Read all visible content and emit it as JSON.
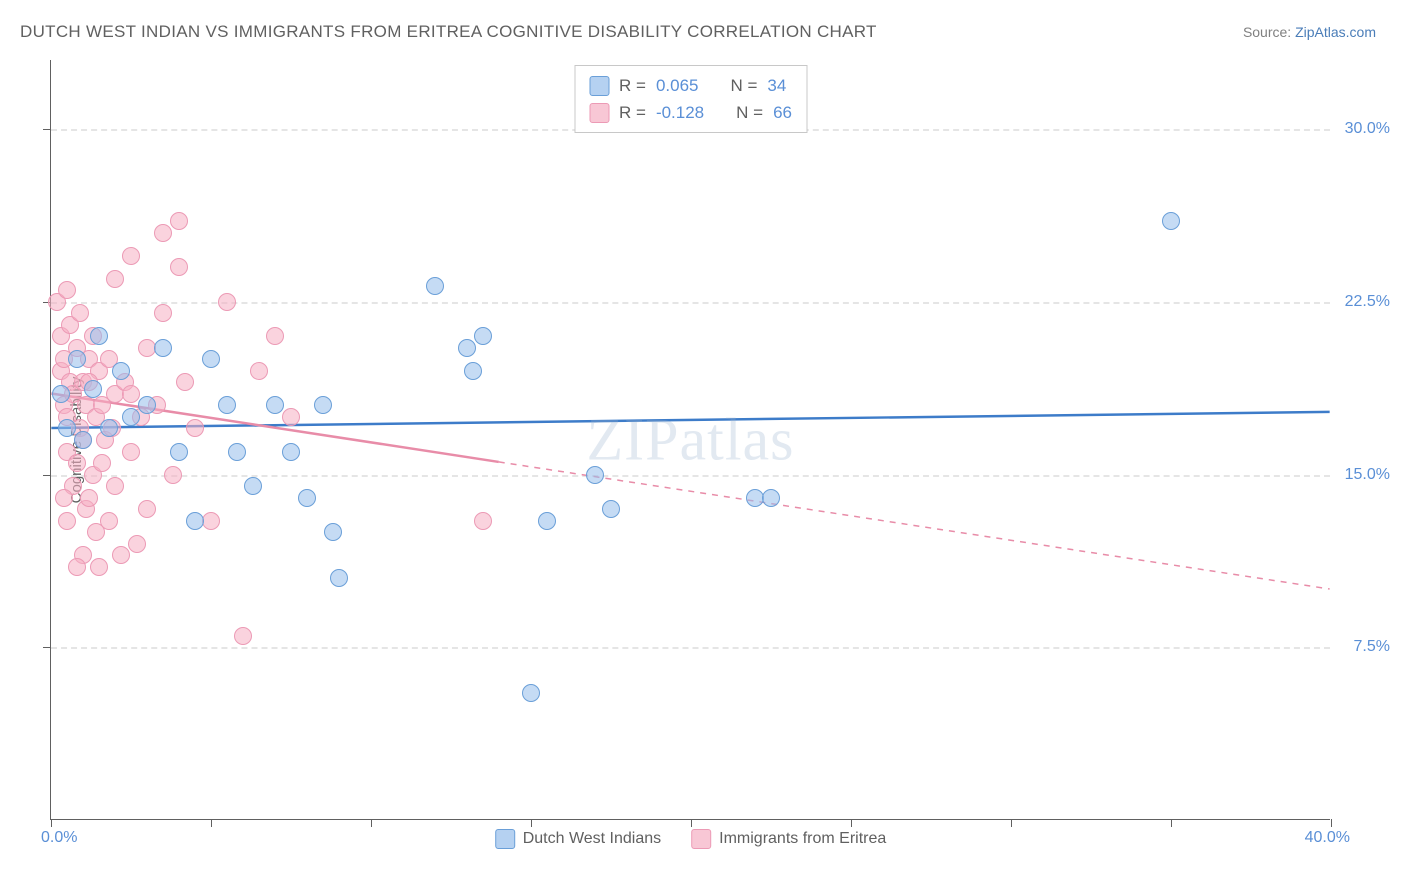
{
  "title": "DUTCH WEST INDIAN VS IMMIGRANTS FROM ERITREA COGNITIVE DISABILITY CORRELATION CHART",
  "source_label": "Source: ",
  "source_name": "ZipAtlas.com",
  "watermark": "ZIPatlas",
  "chart": {
    "type": "scatter",
    "yaxis_title": "Cognitive Disability",
    "xlim": [
      0,
      40
    ],
    "ylim": [
      0,
      33
    ],
    "yticks": [
      7.5,
      15.0,
      22.5,
      30.0
    ],
    "ytick_labels": [
      "7.5%",
      "15.0%",
      "22.5%",
      "30.0%"
    ],
    "xtick_positions": [
      0,
      5,
      10,
      15,
      20,
      25,
      30,
      35,
      40
    ],
    "xlabel_min": "0.0%",
    "xlabel_max": "40.0%",
    "background_color": "#ffffff",
    "grid_color": "#e5e5e5",
    "axis_color": "#606060",
    "marker_radius": 9,
    "series": [
      {
        "name": "Dutch West Indians",
        "color_fill": "rgba(150,190,235,0.55)",
        "color_stroke": "#6a9fd8",
        "class": "p-blue",
        "R": 0.065,
        "N": 34,
        "trend": {
          "y_at_xmin": 17.0,
          "y_at_xmax": 17.7,
          "dash_after_x": null,
          "color": "#3d7cc9",
          "width": 2.5
        },
        "points": [
          [
            0.3,
            18.5
          ],
          [
            0.5,
            17.0
          ],
          [
            0.8,
            20.0
          ],
          [
            1.0,
            16.5
          ],
          [
            1.3,
            18.7
          ],
          [
            1.5,
            21.0
          ],
          [
            2.2,
            19.5
          ],
          [
            2.5,
            17.5
          ],
          [
            3.0,
            18.0
          ],
          [
            3.5,
            20.5
          ],
          [
            4.0,
            16.0
          ],
          [
            4.5,
            13.0
          ],
          [
            5.0,
            20.0
          ],
          [
            5.5,
            18.0
          ],
          [
            5.8,
            16.0
          ],
          [
            6.3,
            14.5
          ],
          [
            7.0,
            18.0
          ],
          [
            7.5,
            16.0
          ],
          [
            8.0,
            14.0
          ],
          [
            8.5,
            18.0
          ],
          [
            8.8,
            12.5
          ],
          [
            9.0,
            10.5
          ],
          [
            12.0,
            23.2
          ],
          [
            13.0,
            20.5
          ],
          [
            13.2,
            19.5
          ],
          [
            13.5,
            21.0
          ],
          [
            15.0,
            5.5
          ],
          [
            15.5,
            13.0
          ],
          [
            17.0,
            15.0
          ],
          [
            17.5,
            13.5
          ],
          [
            22.0,
            14.0
          ],
          [
            22.5,
            14.0
          ],
          [
            35.0,
            26.0
          ],
          [
            1.8,
            17.0
          ]
        ]
      },
      {
        "name": "Immigrants from Eritrea",
        "color_fill": "rgba(245,175,195,0.55)",
        "color_stroke": "#ec9ab5",
        "class": "p-pink",
        "R": -0.128,
        "N": 66,
        "trend": {
          "y_at_xmin": 18.5,
          "y_at_xmax": 10.0,
          "dash_after_x": 14.0,
          "color": "#e88ca8",
          "width": 2.5
        },
        "points": [
          [
            0.2,
            22.5
          ],
          [
            0.3,
            21.0
          ],
          [
            0.3,
            19.5
          ],
          [
            0.4,
            20.0
          ],
          [
            0.4,
            18.0
          ],
          [
            0.5,
            23.0
          ],
          [
            0.5,
            17.5
          ],
          [
            0.5,
            16.0
          ],
          [
            0.6,
            19.0
          ],
          [
            0.6,
            21.5
          ],
          [
            0.7,
            18.5
          ],
          [
            0.7,
            14.5
          ],
          [
            0.8,
            20.5
          ],
          [
            0.8,
            15.5
          ],
          [
            0.9,
            17.0
          ],
          [
            0.9,
            22.0
          ],
          [
            1.0,
            19.0
          ],
          [
            1.0,
            16.5
          ],
          [
            1.1,
            18.0
          ],
          [
            1.1,
            13.5
          ],
          [
            1.2,
            20.0
          ],
          [
            1.2,
            14.0
          ],
          [
            1.3,
            15.0
          ],
          [
            1.3,
            21.0
          ],
          [
            1.4,
            17.5
          ],
          [
            1.4,
            12.5
          ],
          [
            1.5,
            19.5
          ],
          [
            1.5,
            11.0
          ],
          [
            1.6,
            18.0
          ],
          [
            1.6,
            15.5
          ],
          [
            1.7,
            16.5
          ],
          [
            1.8,
            20.0
          ],
          [
            1.8,
            13.0
          ],
          [
            1.9,
            17.0
          ],
          [
            2.0,
            14.5
          ],
          [
            2.0,
            18.5
          ],
          [
            2.2,
            11.5
          ],
          [
            2.3,
            19.0
          ],
          [
            2.5,
            24.5
          ],
          [
            2.5,
            16.0
          ],
          [
            2.7,
            12.0
          ],
          [
            2.8,
            17.5
          ],
          [
            3.0,
            20.5
          ],
          [
            3.0,
            13.5
          ],
          [
            3.3,
            18.0
          ],
          [
            3.5,
            25.5
          ],
          [
            3.5,
            22.0
          ],
          [
            4.0,
            24.0
          ],
          [
            4.0,
            26.0
          ],
          [
            4.2,
            19.0
          ],
          [
            4.5,
            17.0
          ],
          [
            5.0,
            13.0
          ],
          [
            5.5,
            22.5
          ],
          [
            6.0,
            8.0
          ],
          [
            6.5,
            19.5
          ],
          [
            7.0,
            21.0
          ],
          [
            7.5,
            17.5
          ],
          [
            2.0,
            23.5
          ],
          [
            1.0,
            11.5
          ],
          [
            0.5,
            13.0
          ],
          [
            0.8,
            11.0
          ],
          [
            1.2,
            19.0
          ],
          [
            3.8,
            15.0
          ],
          [
            13.5,
            13.0
          ],
          [
            0.4,
            14.0
          ],
          [
            2.5,
            18.5
          ]
        ]
      }
    ],
    "correlation_box": {
      "R_label": "R = ",
      "N_label": "N = "
    },
    "legend": {
      "items": [
        "Dutch West Indians",
        "Immigrants from Eritrea"
      ]
    }
  }
}
